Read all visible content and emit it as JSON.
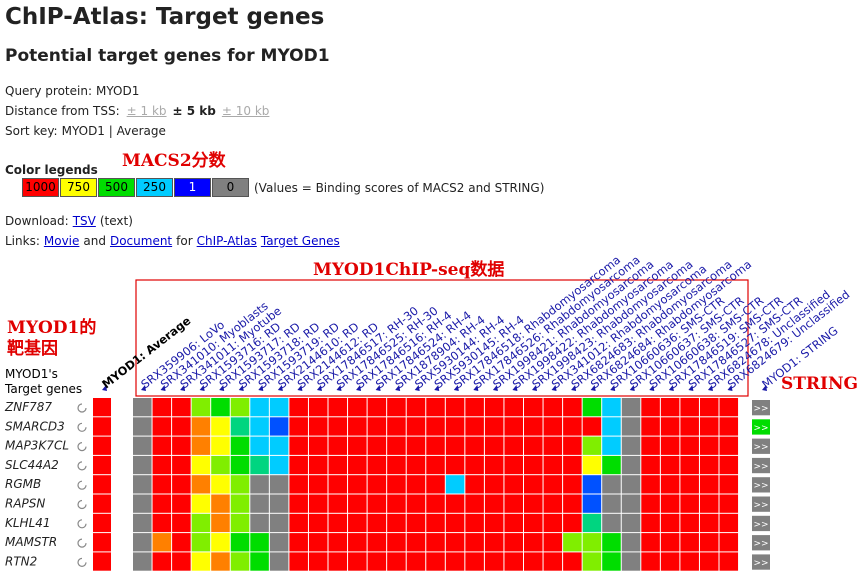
{
  "header": {
    "title": "ChIP-Atlas: Target genes",
    "subtitle": "Potential target genes for MYOD1"
  },
  "query": {
    "label": "Query protein:",
    "value": "MYOD1"
  },
  "distance": {
    "label": "Distance from TSS:",
    "options": [
      "± 1 kb",
      "± 5 kb",
      "± 10 kb"
    ],
    "selected": 1
  },
  "sort": {
    "label": "Sort key:",
    "value": "MYOD1 | Average"
  },
  "legend": {
    "title": "Color legends",
    "items": [
      {
        "value": 1000,
        "color": "#ff0000"
      },
      {
        "value": 750,
        "color": "#ffff00"
      },
      {
        "value": 500,
        "color": "#00dd00"
      },
      {
        "value": 250,
        "color": "#00ccff"
      },
      {
        "value": 1,
        "color": "#0000ff"
      },
      {
        "value": 0,
        "color": "#808080"
      }
    ],
    "note": "(Values = Binding scores of MACS2 and STRING)"
  },
  "download": {
    "label": "Download:",
    "link": "TSV",
    "suffix": "(text)"
  },
  "links": {
    "label": "Links:",
    "parts": [
      {
        "text": "Movie",
        "link": true
      },
      {
        "text": "and",
        "link": false
      },
      {
        "text": "Document",
        "link": true
      },
      {
        "text": "for",
        "link": false
      },
      {
        "text": "ChIP-Atlas",
        "link": true
      },
      {
        "text": "Target Genes",
        "link": true
      }
    ]
  },
  "annotations": {
    "macs2": "MACS2分数",
    "chipseq": "MYOD1ChIP-seq数据",
    "targets": [
      "MYOD1的",
      "靶基因"
    ],
    "string": "STRING"
  },
  "table": {
    "gene_header": [
      "MYOD1's",
      "Target genes"
    ],
    "average_label": "MYOD1: Average",
    "string_label": "MYOD1: STRING",
    "string_button": ">>",
    "experiments": [
      "SRX359906: LoVo",
      "SRX341010: Myoblasts",
      "SRX341011: Myotube",
      "SRX1593716: RD",
      "SRX1593717: RD",
      "SRX1593718: RD",
      "SRX1593719: RD",
      "SRX2144610: RD",
      "SRX2144612: RD",
      "SRX17846517: RH-30",
      "SRX17846525: RH-30",
      "SRX17846516: RH-4",
      "SRX17846524: RH-4",
      "SRX1878904: RH-4",
      "SRX5930144: RH-4",
      "SRX5930145: RH-4",
      "SRX17846518: Rhabdomyosarcoma",
      "SRX17846526: Rhabdomyosarcoma",
      "SRX1998421: Rhabdomyosarcoma",
      "SRX1998422: Rhabdomyosarcoma",
      "SRX1998423: Rhabdomyosarcoma",
      "SRX341012: Rhabdomyosarcoma",
      "SRX6824683: Rhabdomyosarcoma",
      "SRX6824684: Rhabdomyosarcoma",
      "SRX10660636: SMS-CTR",
      "SRX10660637: SMS-CTR",
      "SRX10660638: SMS-CTR",
      "SRX17846519: SMS-CTR",
      "SRX17846527: SMS-CTR",
      "SRX6824678: Unclassified",
      "SRX6824679: Unclassified"
    ],
    "genes": [
      "ZNF787",
      "SMARCD3",
      "MAP3K7CL",
      "SLC44A2",
      "RGMB",
      "RAPSN",
      "KLHL41",
      "MAMSTR",
      "RTN2"
    ],
    "average": [
      1000,
      1000,
      1000,
      1000,
      1000,
      1000,
      1000,
      1000,
      1000
    ],
    "string": [
      0,
      500,
      0,
      0,
      0,
      0,
      0,
      0,
      0
    ],
    "scores": [
      [
        0,
        1000,
        1000,
        625,
        500,
        625,
        250,
        250,
        1000,
        1000,
        1000,
        1000,
        1000,
        1000,
        1000,
        1000,
        1000,
        1000,
        1000,
        1000,
        1000,
        1000,
        1000,
        500,
        250,
        0,
        1000,
        1000,
        1000,
        1000,
        1000
      ],
      [
        0,
        1000,
        1000,
        875,
        750,
        375,
        250,
        100,
        1000,
        1000,
        1000,
        1000,
        1000,
        1000,
        1000,
        1000,
        1000,
        1000,
        1000,
        1000,
        1000,
        1000,
        1000,
        1000,
        250,
        0,
        1000,
        1000,
        1000,
        1000,
        1000
      ],
      [
        0,
        1000,
        1000,
        875,
        750,
        500,
        250,
        250,
        1000,
        1000,
        1000,
        1000,
        1000,
        1000,
        1000,
        1000,
        1000,
        1000,
        1000,
        1000,
        1000,
        1000,
        1000,
        625,
        250,
        0,
        1000,
        1000,
        1000,
        1000,
        1000
      ],
      [
        0,
        1000,
        1000,
        750,
        625,
        500,
        375,
        250,
        1000,
        1000,
        1000,
        1000,
        1000,
        1000,
        1000,
        1000,
        1000,
        1000,
        1000,
        1000,
        1000,
        1000,
        1000,
        750,
        500,
        0,
        1000,
        1000,
        1000,
        1000,
        1000
      ],
      [
        0,
        1000,
        1000,
        875,
        750,
        625,
        0,
        0,
        1000,
        1000,
        1000,
        1000,
        1000,
        1000,
        1000,
        1000,
        250,
        1000,
        1000,
        1000,
        1000,
        1000,
        1000,
        100,
        0,
        0,
        1000,
        1000,
        1000,
        1000,
        1000
      ],
      [
        0,
        1000,
        1000,
        750,
        875,
        625,
        0,
        0,
        1000,
        1000,
        1000,
        1000,
        1000,
        1000,
        1000,
        1000,
        1000,
        1000,
        1000,
        1000,
        1000,
        1000,
        1000,
        100,
        0,
        0,
        1000,
        1000,
        1000,
        1000,
        1000
      ],
      [
        0,
        1000,
        1000,
        625,
        875,
        625,
        0,
        0,
        1000,
        1000,
        1000,
        1000,
        1000,
        1000,
        1000,
        1000,
        1000,
        1000,
        1000,
        1000,
        1000,
        1000,
        1000,
        375,
        0,
        0,
        1000,
        1000,
        1000,
        1000,
        1000
      ],
      [
        0,
        875,
        1000,
        625,
        750,
        500,
        500,
        0,
        1000,
        1000,
        1000,
        1000,
        1000,
        1000,
        1000,
        1000,
        1000,
        1000,
        1000,
        1000,
        1000,
        1000,
        625,
        625,
        500,
        0,
        1000,
        1000,
        1000,
        1000,
        1000
      ],
      [
        0,
        1000,
        1000,
        750,
        875,
        625,
        500,
        0,
        1000,
        1000,
        1000,
        1000,
        1000,
        1000,
        1000,
        1000,
        1000,
        1000,
        1000,
        1000,
        1000,
        1000,
        1000,
        625,
        500,
        0,
        1000,
        1000,
        1000,
        1000,
        1000
      ]
    ]
  }
}
